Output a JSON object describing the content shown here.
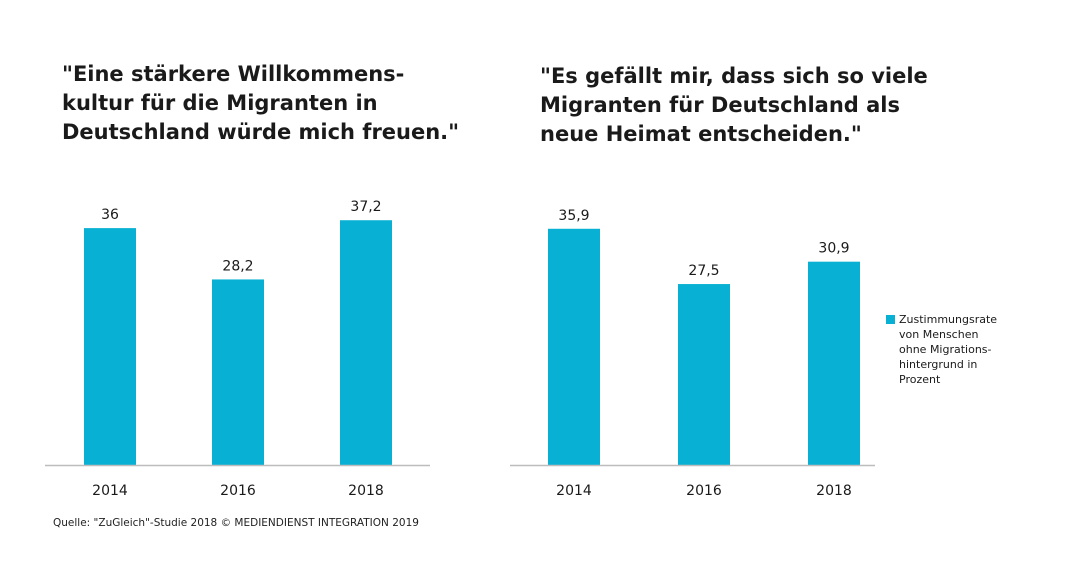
{
  "chart_data": [
    {
      "type": "bar",
      "title": "\"Eine stärkere Willkommens-\nkultur für die Migranten in\nDeutschland würde mich freuen.\"",
      "categories": [
        "2014",
        "2016",
        "2018"
      ],
      "values": [
        36,
        28.2,
        37.2
      ],
      "value_labels": [
        "36",
        "28,2",
        "37,2"
      ],
      "ylim": [
        0,
        40
      ],
      "grid": false
    },
    {
      "type": "bar",
      "title": "\"Es gefällt mir, dass sich so viele\nMigranten für Deutschland als\nneue Heimat entscheiden.\"",
      "categories": [
        "2014",
        "2016",
        "2018"
      ],
      "values": [
        35.9,
        27.5,
        30.9
      ],
      "value_labels": [
        "35,9",
        "27,5",
        "30,9"
      ],
      "ylim": [
        0,
        40
      ],
      "grid": false
    }
  ],
  "legend": {
    "label": "Zustimmungsrate\nvon Menschen\nohne Migrations-\nhintergrund in\nProzent",
    "placement": "right"
  },
  "source": "Quelle: \"ZuGleich\"-Studie 2018 © MEDIENDIENST INTEGRATION 2019",
  "colors": {
    "bar": "#08b0d3",
    "axis": "#bdbdbd"
  }
}
